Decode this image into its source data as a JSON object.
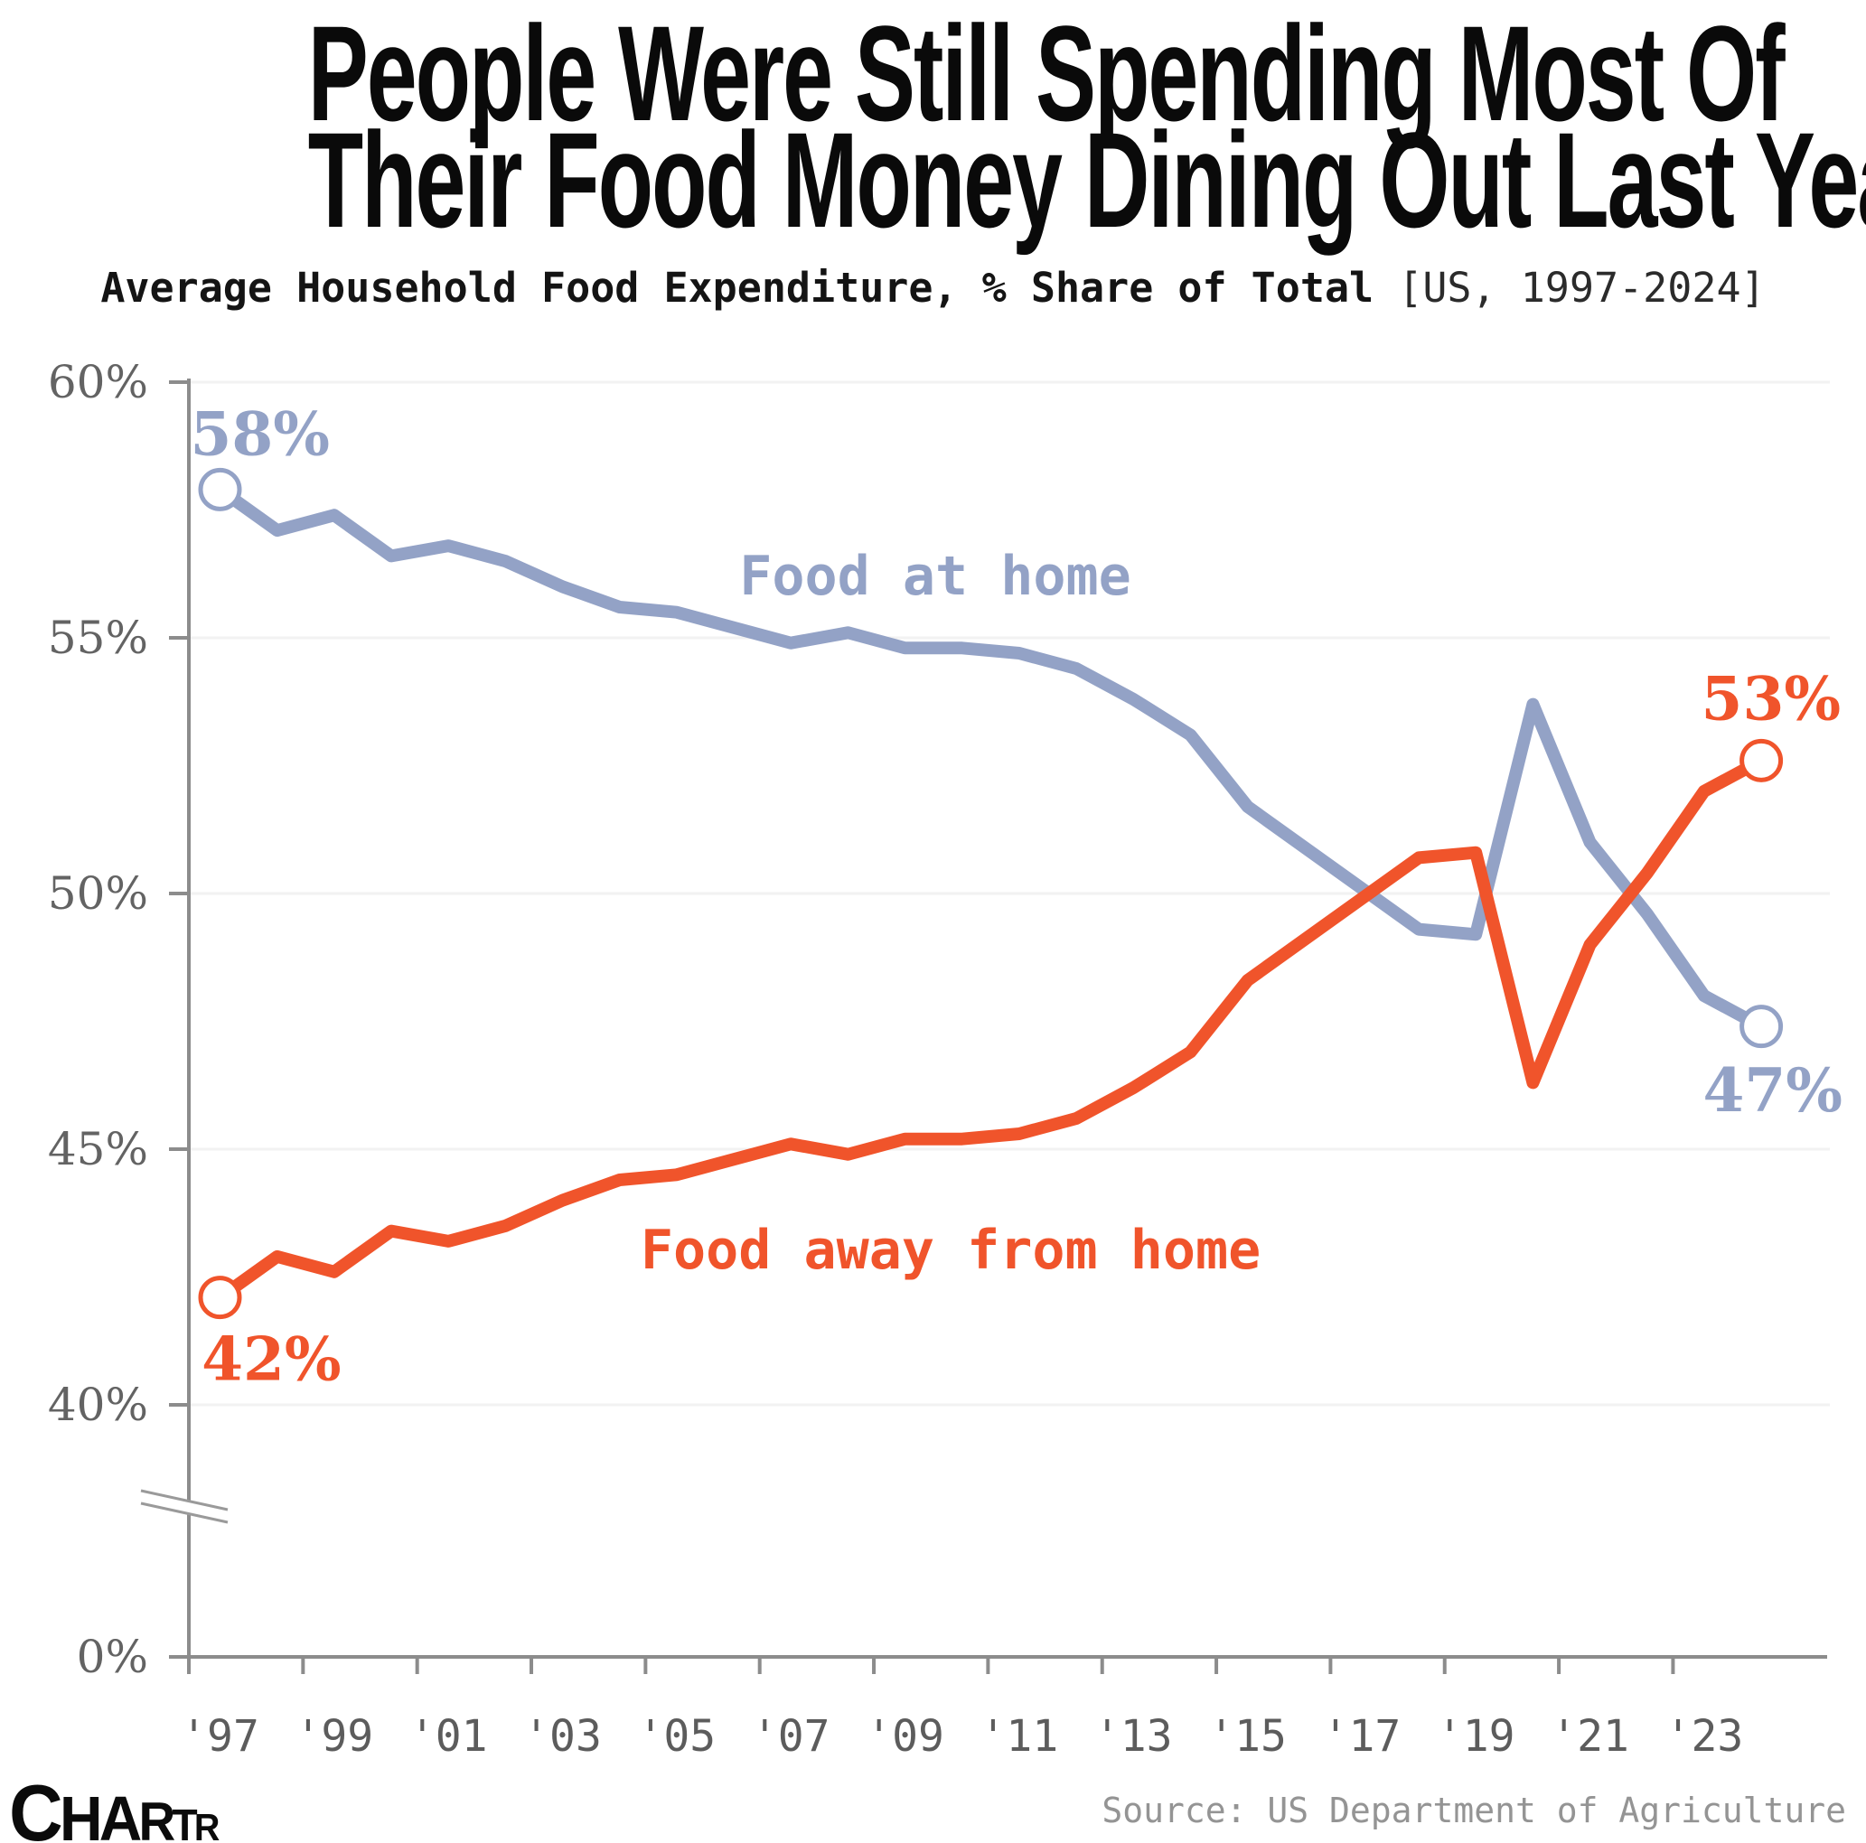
{
  "header": {
    "title_line1": "People Were Still Spending Most Of",
    "title_line2": "Their Food Money Dining Out Last Year",
    "subtitle_main": "Average Household Food Expenditure, % Share of Total",
    "subtitle_note": " [US, 1997-2024]"
  },
  "footer": {
    "logo_letters": [
      "C",
      "H",
      "A",
      "R",
      "T",
      "R"
    ],
    "source": "Source: US Department of Agriculture"
  },
  "colors": {
    "food_at_home": "#93A2C6",
    "food_away": "#F0542B",
    "axis": "#8c8c8c",
    "grid": "#f2f2f2",
    "y_tick_text": "#636363",
    "x_tick_text": "#5c5c5c",
    "break_mark": "#9a9a9a"
  },
  "chart_data": {
    "type": "line",
    "title": "People Were Still Spending Most Of Their Food Money Dining Out Last Year",
    "subtitle": "Average Household Food Expenditure, % Share of Total [US, 1997-2024]",
    "xlabel": "",
    "ylabel": "",
    "x": [
      1997,
      1998,
      1999,
      2000,
      2001,
      2002,
      2003,
      2004,
      2005,
      2006,
      2007,
      2008,
      2009,
      2010,
      2011,
      2012,
      2013,
      2014,
      2015,
      2016,
      2017,
      2018,
      2019,
      2020,
      2021,
      2022,
      2023,
      2024
    ],
    "series": [
      {
        "name": "Food at home",
        "color_key": "food_at_home",
        "values": [
          57.9,
          57.1,
          57.4,
          56.6,
          56.8,
          56.5,
          56.0,
          55.6,
          55.5,
          55.2,
          54.9,
          55.1,
          54.8,
          54.8,
          54.7,
          54.4,
          53.8,
          53.1,
          51.7,
          50.9,
          50.1,
          49.3,
          49.2,
          53.7,
          51.0,
          49.6,
          48.0,
          47.4
        ],
        "start_label": "58%",
        "end_label": "47%"
      },
      {
        "name": "Food away from home",
        "color_key": "food_away",
        "values": [
          42.1,
          42.9,
          42.6,
          43.4,
          43.2,
          43.5,
          44.0,
          44.4,
          44.5,
          44.8,
          45.1,
          44.9,
          45.2,
          45.2,
          45.3,
          45.6,
          46.2,
          46.9,
          48.3,
          49.1,
          49.9,
          50.7,
          50.8,
          46.3,
          49.0,
          50.4,
          52.0,
          52.6
        ],
        "start_label": "42%",
        "end_label": "53%"
      }
    ],
    "y_ticks": [
      {
        "label": "60%",
        "value": 60
      },
      {
        "label": "55%",
        "value": 55
      },
      {
        "label": "50%",
        "value": 50
      },
      {
        "label": "45%",
        "value": 45
      },
      {
        "label": "40%",
        "value": 40
      },
      {
        "label": "0%",
        "value": 0,
        "after_break": true
      }
    ],
    "x_tick_labels": [
      "'97",
      "'99",
      "'01",
      "'03",
      "'05",
      "'07",
      "'09",
      "'11",
      "'13",
      "'15",
      "'17",
      "'19",
      "'21",
      "'23"
    ],
    "axis_break": true,
    "grid": "horizontal-faint",
    "legend": "inline-labels",
    "ylim_main": [
      40,
      60
    ],
    "annotations": [
      {
        "text": "Food at home",
        "font": "mono",
        "color_key": "food_at_home",
        "x_year": 2009.53,
        "y_pct": 55.85,
        "anchor": "middle",
        "size": 60,
        "bold": true
      },
      {
        "text": "Food away from home",
        "font": "mono",
        "color_key": "food_away",
        "x_year": 2009.8,
        "y_pct": 42.67,
        "anchor": "middle",
        "size": 60,
        "bold": true
      },
      {
        "text": "58%",
        "font": "serif",
        "color_key": "food_at_home",
        "x_year": 1997.7,
        "y_pct": 58.58,
        "anchor": "middle",
        "size": 66,
        "bold": true
      },
      {
        "text": "42%",
        "font": "serif",
        "color_key": "food_away",
        "x_year": 1997.9,
        "y_pct": 40.49,
        "anchor": "middle",
        "size": 66,
        "bold": true
      },
      {
        "text": "53%",
        "font": "serif",
        "color_key": "food_away",
        "x_year": 2024.17,
        "y_pct": 53.4,
        "anchor": "middle",
        "size": 66,
        "bold": true
      },
      {
        "text": "47%",
        "font": "serif",
        "color_key": "food_at_home",
        "x_year": 2024.2,
        "y_pct": 45.74,
        "anchor": "middle",
        "size": 66,
        "bold": true
      }
    ]
  }
}
